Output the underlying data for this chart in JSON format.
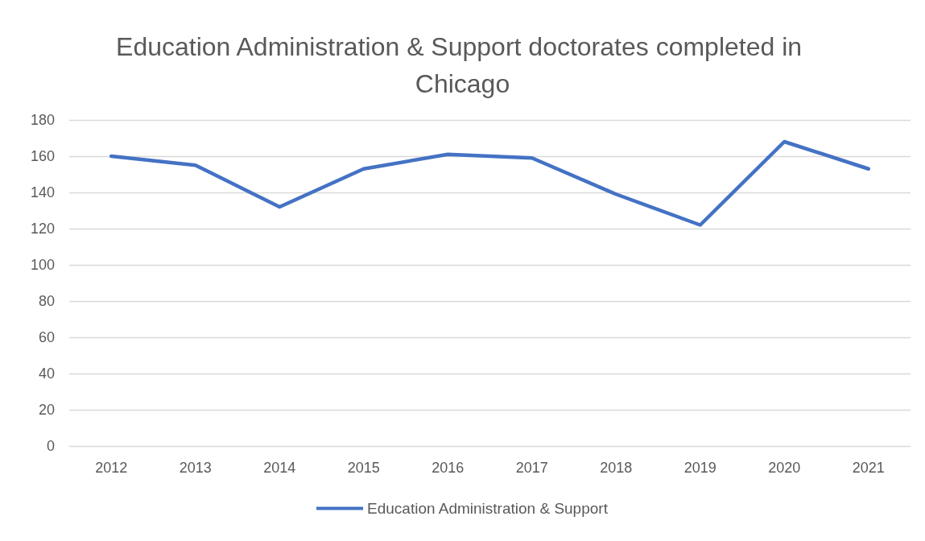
{
  "chart_data": {
    "type": "line",
    "title": "Education Administration & Support doctorates completed in Chicago",
    "categories": [
      "2012",
      "2013",
      "2014",
      "2015",
      "2016",
      "2017",
      "2018",
      "2019",
      "2020",
      "2021"
    ],
    "series": [
      {
        "name": "Education Administration & Support",
        "color": "#4472c4",
        "values": [
          160,
          155,
          132,
          153,
          161,
          159,
          139,
          122,
          168,
          153
        ]
      }
    ],
    "ylim": [
      0,
      180
    ],
    "yticks": [
      0,
      20,
      40,
      60,
      80,
      100,
      120,
      140,
      160,
      180
    ],
    "grid": "y",
    "legend": "bottom",
    "marker": "none",
    "line_style": "solid"
  }
}
